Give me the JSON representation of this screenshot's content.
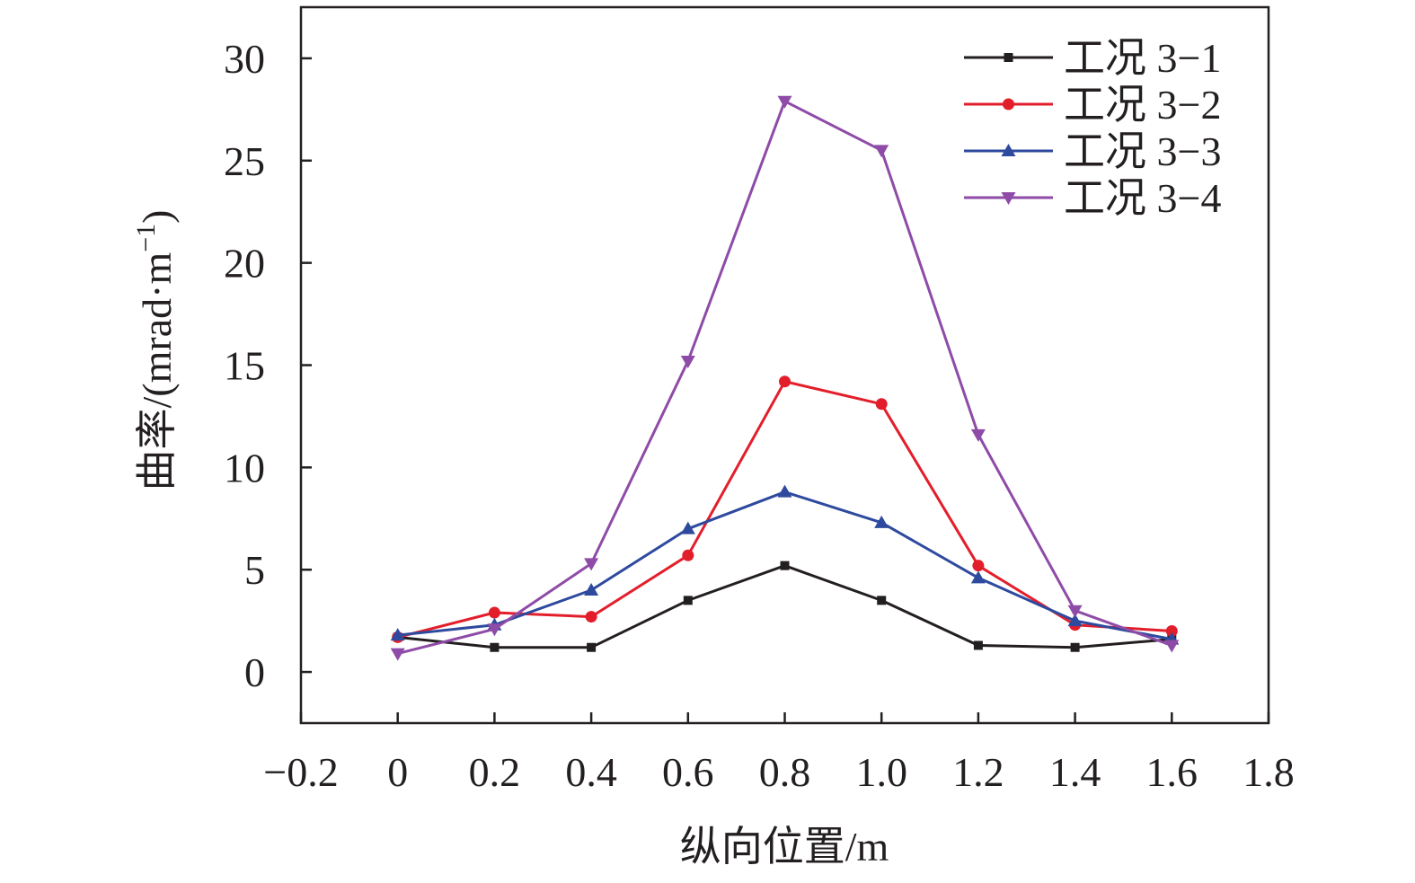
{
  "chart_data": {
    "type": "line",
    "xlabel": "纵向位置/m",
    "ylabel": "曲率/(mrad·m",
    "ylabel_sup": "−1",
    "ylabel_close": ")",
    "xlim": [
      -0.2,
      1.8
    ],
    "ylim": [
      -2.5,
      32.5
    ],
    "x_ticks": [
      -0.2,
      0,
      0.2,
      0.4,
      0.6,
      0.8,
      1.0,
      1.2,
      1.4,
      1.6,
      1.8
    ],
    "x_tick_labels": [
      "−0.2",
      "0",
      "0.2",
      "0.4",
      "0.6",
      "0.8",
      "1.0",
      "1.2",
      "1.4",
      "1.6",
      "1.8"
    ],
    "y_ticks": [
      0,
      5,
      10,
      15,
      20,
      25,
      30
    ],
    "y_tick_labels": [
      "0",
      "5",
      "10",
      "15",
      "20",
      "25",
      "30"
    ],
    "grid": false,
    "legend_position": "top-right",
    "x": [
      0,
      0.2,
      0.4,
      0.6,
      0.8,
      1.0,
      1.2,
      1.4,
      1.6
    ],
    "series": [
      {
        "name": "工况 3−1",
        "color": "#231f20",
        "marker": "square",
        "values": [
          1.7,
          1.2,
          1.2,
          3.5,
          5.2,
          3.5,
          1.3,
          1.2,
          1.6
        ]
      },
      {
        "name": "工况 3−2",
        "color": "#e31e2b",
        "marker": "circle",
        "values": [
          1.7,
          2.9,
          2.7,
          5.7,
          14.2,
          13.1,
          5.2,
          2.3,
          2.0
        ]
      },
      {
        "name": "工况 3−3",
        "color": "#2e4a9e",
        "marker": "triangle-up",
        "values": [
          1.8,
          2.3,
          4.0,
          7.0,
          8.8,
          7.3,
          4.6,
          2.5,
          1.6
        ]
      },
      {
        "name": "工况 3−4",
        "color": "#8e4ba7",
        "marker": "triangle-down",
        "values": [
          0.9,
          2.1,
          5.3,
          15.2,
          27.9,
          25.5,
          11.6,
          3.0,
          1.3
        ]
      }
    ]
  }
}
